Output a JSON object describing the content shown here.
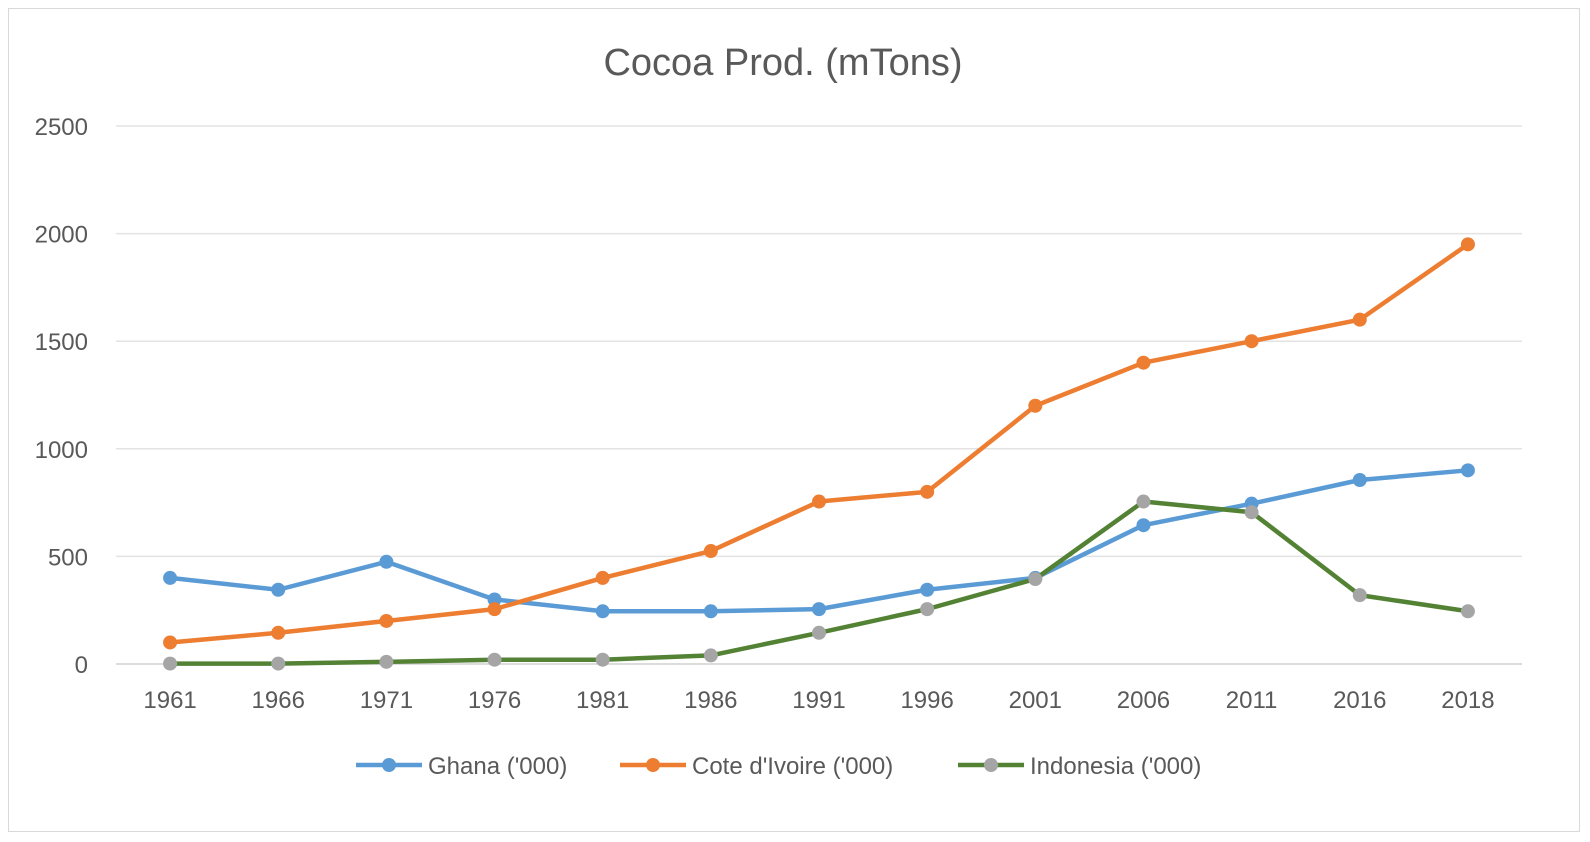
{
  "chart_data": {
    "type": "line",
    "title": "Cocoa Prod. (mTons)",
    "xlabel": "",
    "ylabel": "",
    "categories": [
      "1961",
      "1966",
      "1971",
      "1976",
      "1981",
      "1986",
      "1991",
      "1996",
      "2001",
      "2006",
      "2011",
      "2016",
      "2018"
    ],
    "ylim": [
      0,
      2500
    ],
    "yticks": [
      "0",
      "500",
      "1000",
      "1500",
      "2000",
      "2500"
    ],
    "grid": "horizontal",
    "legend_position": "bottom",
    "series": [
      {
        "name": "Ghana ('000)",
        "color": "#5b9bd5",
        "values": [
          400,
          345,
          475,
          300,
          245,
          245,
          255,
          345,
          400,
          645,
          745,
          855,
          900
        ]
      },
      {
        "name": "Cote d'Ivoire ('000)",
        "color": "#ed7d31",
        "values": [
          100,
          145,
          200,
          255,
          400,
          525,
          755,
          800,
          1200,
          1400,
          1500,
          1600,
          1950
        ]
      },
      {
        "name": "Indonesia ('000)",
        "color": "#548235",
        "marker_color": "#a5a5a5",
        "values": [
          2,
          2,
          10,
          20,
          20,
          40,
          145,
          255,
          395,
          755,
          705,
          320,
          245
        ]
      }
    ]
  }
}
